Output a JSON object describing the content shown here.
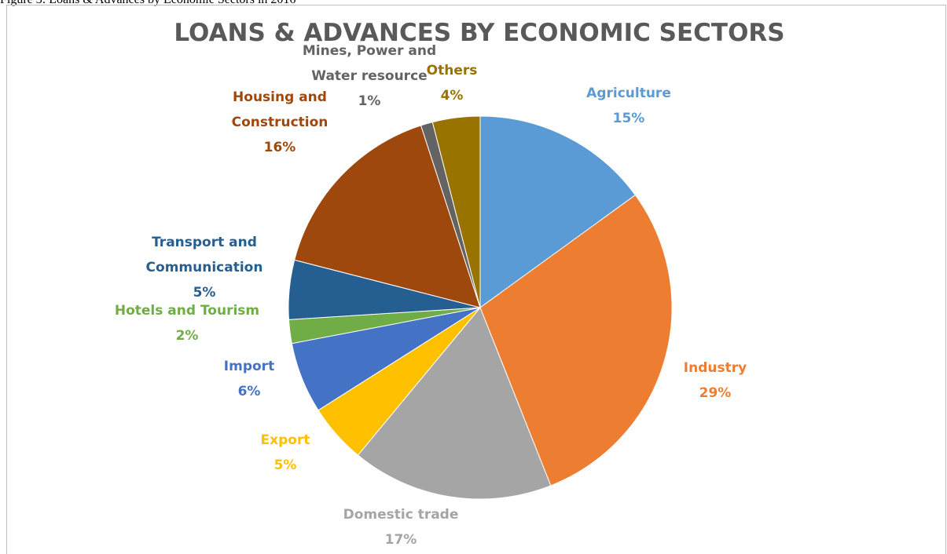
{
  "caption": "Figure 3: Loans & Advances by Economic Sectors in 2016",
  "chart_data": {
    "type": "pie",
    "title": "LOANS & ADVANCES BY ECONOMIC SECTORS",
    "slices": [
      {
        "name": "Agriculture",
        "value": 15,
        "label": "15%",
        "color": "#5b9bd5",
        "label_lines": [
          "Agriculture"
        ]
      },
      {
        "name": "Industry",
        "value": 29,
        "label": "29%",
        "color": "#ed7d31",
        "label_lines": [
          "Industry"
        ]
      },
      {
        "name": "Domestic trade",
        "value": 17,
        "label": "17%",
        "color": "#a5a5a5",
        "label_lines": [
          "Domestic trade"
        ]
      },
      {
        "name": "Export",
        "value": 5,
        "label": "5%",
        "color": "#ffc000",
        "label_lines": [
          "Export"
        ]
      },
      {
        "name": "Import",
        "value": 6,
        "label": "6%",
        "color": "#4472c4",
        "label_lines": [
          "Import"
        ]
      },
      {
        "name": "Hotels and Tourism",
        "value": 2,
        "label": "2%",
        "color": "#70ad47",
        "label_lines": [
          "Hotels and Tourism"
        ]
      },
      {
        "name": "Transport and Communication",
        "value": 5,
        "label": "5%",
        "color": "#255e91",
        "label_lines": [
          "Transport and",
          "Communication"
        ]
      },
      {
        "name": "Housing and Construction",
        "value": 16,
        "label": "16%",
        "color": "#9e480e",
        "label_lines": [
          "Housing and",
          "Construction"
        ]
      },
      {
        "name": "Mines, Power and Water resource",
        "value": 1,
        "label": "1%",
        "color": "#636363",
        "label_lines": [
          "Mines, Power and",
          "Water resource"
        ]
      },
      {
        "name": "Others",
        "value": 4,
        "label": "4%",
        "color": "#997300",
        "label_lines": [
          "Others"
        ]
      }
    ],
    "legend": "none",
    "data_labels": "outside"
  }
}
